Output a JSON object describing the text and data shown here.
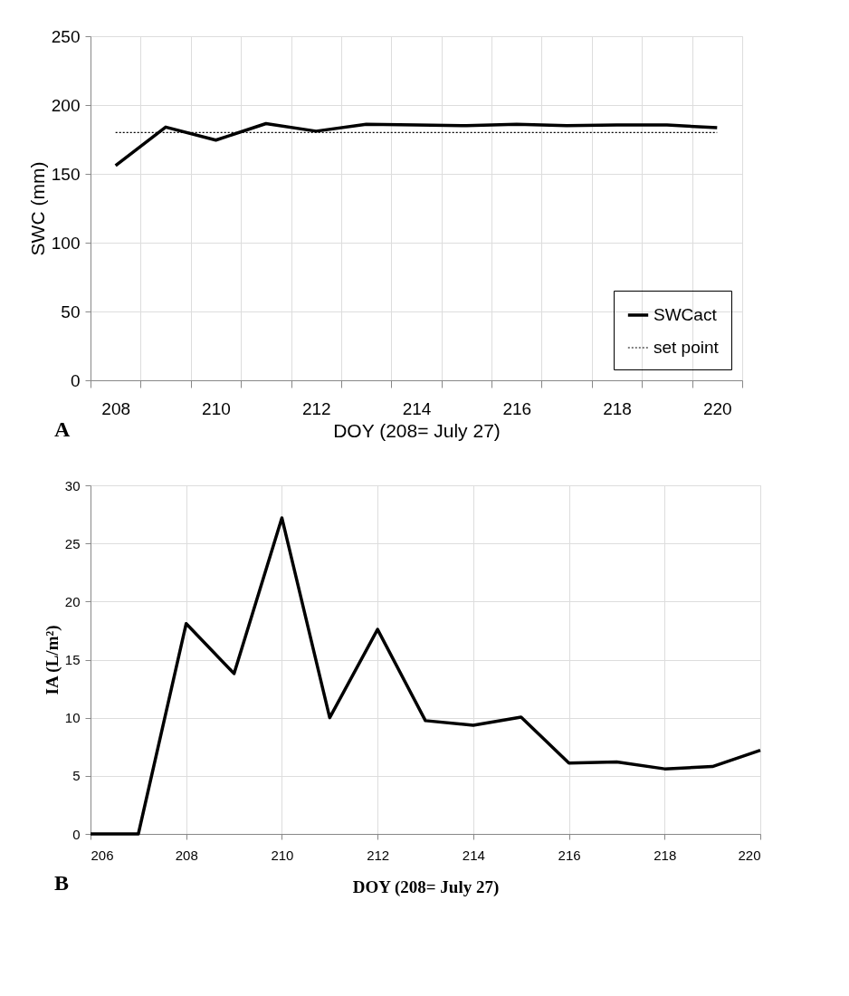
{
  "chart_data": [
    {
      "type": "line",
      "categories": [
        "208",
        null,
        "210",
        null,
        "212",
        null,
        "214",
        null,
        "216",
        null,
        "218",
        null,
        "220"
      ],
      "series": [
        {
          "name": "SWCact",
          "color": "#000000",
          "line_style": "solid",
          "values": [
            156,
            184,
            174.5,
            186.5,
            181,
            186,
            185.5,
            185,
            186,
            185,
            185.5,
            185.5,
            183.5
          ]
        },
        {
          "name": "set point",
          "color": "#000000",
          "line_style": "dotted",
          "values": [
            180,
            180,
            180,
            180,
            180,
            180,
            180,
            180,
            180,
            180,
            180,
            180,
            180
          ]
        }
      ],
      "ylim": [
        0,
        250
      ],
      "yticks": [
        0,
        50,
        100,
        150,
        200,
        250
      ],
      "grid": true,
      "legend": "bottom right",
      "xlabel": "DOY (208= July 27)",
      "ylabel": "SWC (mm)",
      "annotations": [
        "A"
      ]
    },
    {
      "type": "line",
      "x": [
        206,
        207,
        208,
        209,
        210,
        211,
        212,
        213,
        214,
        215,
        216,
        217,
        218,
        219,
        220
      ],
      "series": [
        {
          "color": "#000000",
          "line_style": "solid",
          "values": [
            0,
            0,
            18.1,
            13.8,
            27.2,
            10.0,
            17.6,
            9.75,
            9.35,
            10.05,
            6.1,
            6.2,
            5.6,
            5.8,
            7.2
          ]
        }
      ],
      "xlim": [
        206,
        220
      ],
      "xticks": [
        206,
        208,
        210,
        212,
        214,
        216,
        218,
        220
      ],
      "ylim": [
        0,
        30
      ],
      "yticks": [
        0,
        5,
        10,
        15,
        20,
        25,
        30
      ],
      "grid": true,
      "xlabel": "DOY (208= July 27)",
      "ylabel": "IA (L/m²)",
      "annotations": [
        "B"
      ]
    }
  ]
}
